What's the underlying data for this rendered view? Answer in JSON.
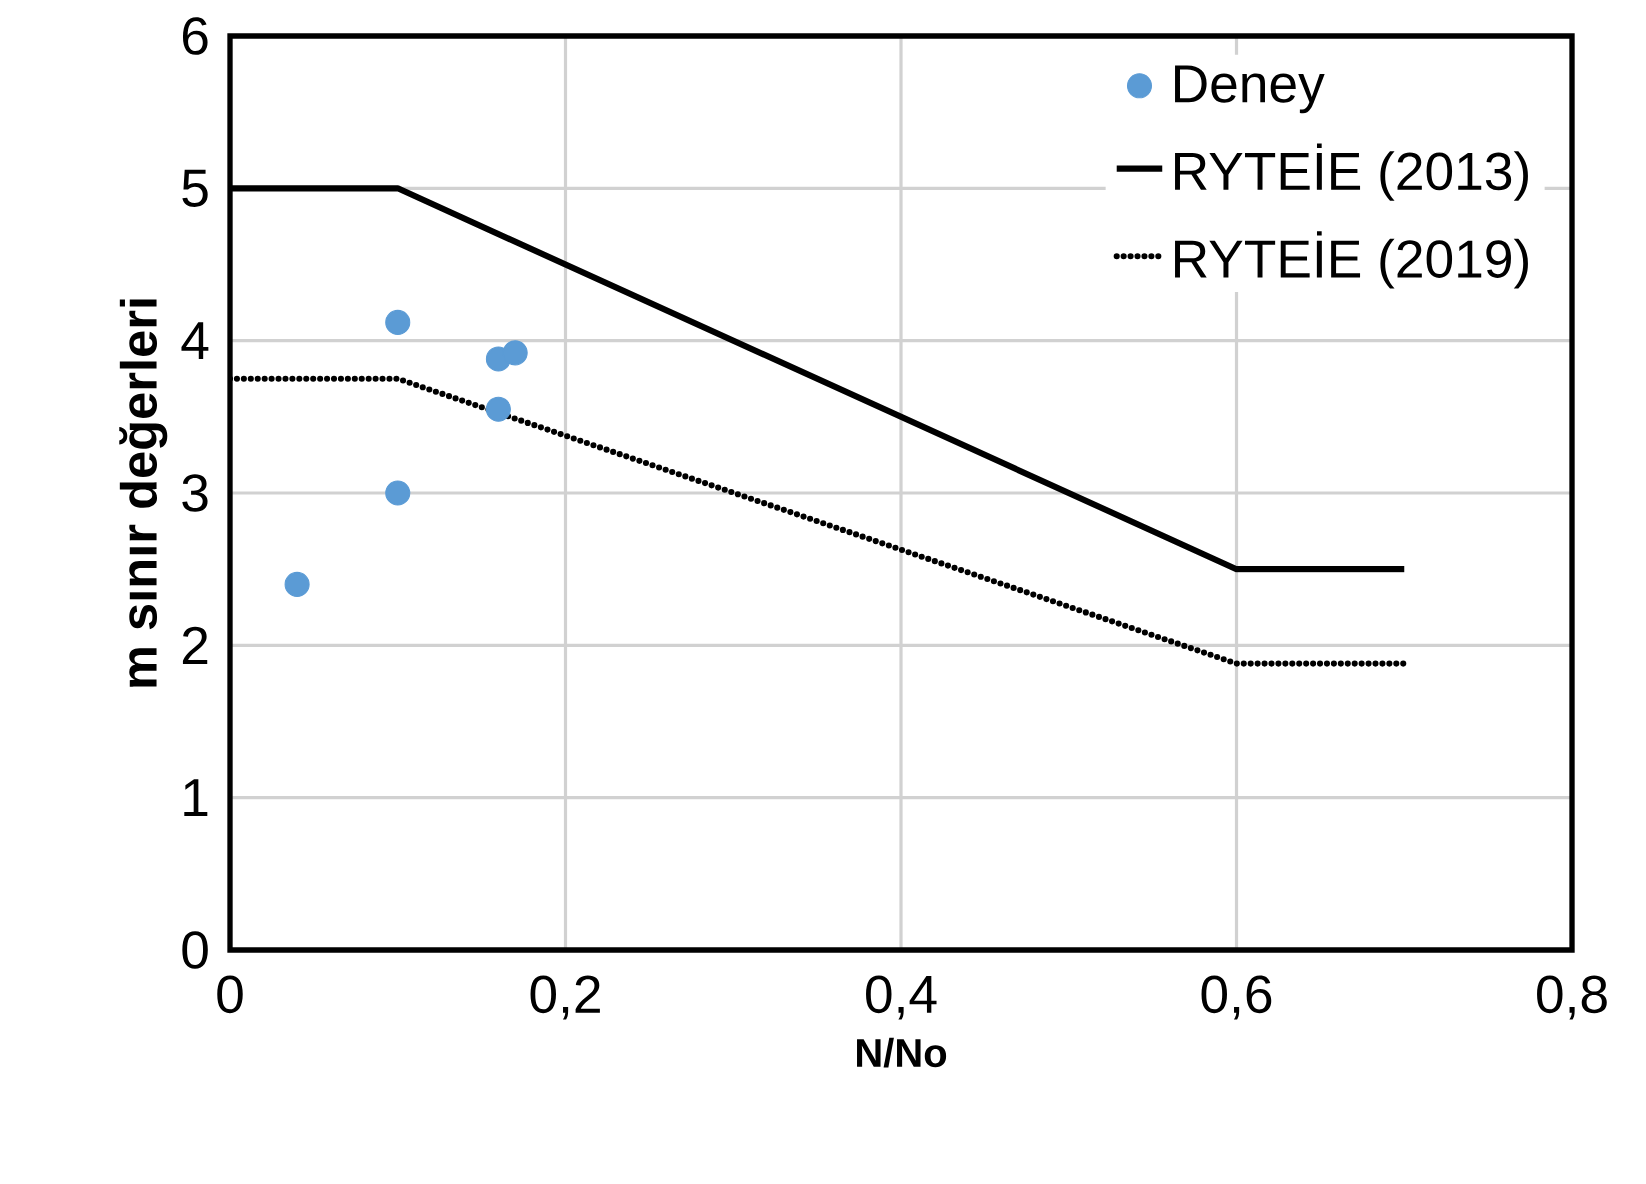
{
  "chart_data": {
    "type": "line",
    "xlabel": "N/No",
    "ylabel": "m sınır değerleri",
    "xlim": [
      0,
      0.8
    ],
    "ylim": [
      0,
      6
    ],
    "xticks": [
      {
        "value": 0,
        "label": "0"
      },
      {
        "value": 0.2,
        "label": "0,2"
      },
      {
        "value": 0.4,
        "label": "0,4"
      },
      {
        "value": 0.6,
        "label": "0,6"
      },
      {
        "value": 0.8,
        "label": "0,8"
      }
    ],
    "yticks": [
      0,
      1,
      2,
      3,
      4,
      5,
      6
    ],
    "grid": true,
    "legend": "top right",
    "series": [
      {
        "name": "Deney",
        "type": "scatter",
        "marker": "circle",
        "color": "#5b9bd5",
        "x": [
          0.04,
          0.1,
          0.1,
          0.16,
          0.16,
          0.17
        ],
        "values": [
          2.4,
          4.12,
          3.0,
          3.88,
          3.55,
          3.92
        ]
      },
      {
        "name": "RYTEİE (2013)",
        "line_style": "solid",
        "marker": "none",
        "color": "#000000",
        "x": [
          0,
          0.1,
          0.6,
          0.7
        ],
        "values": [
          5,
          5,
          2.5,
          2.5
        ]
      },
      {
        "name": "RYTEİE (2019)",
        "line_style": "dotted",
        "marker": "none",
        "color": "#000000",
        "x": [
          0,
          0.1,
          0.6,
          0.7
        ],
        "values": [
          3.75,
          3.75,
          1.88,
          1.88
        ]
      }
    ]
  }
}
